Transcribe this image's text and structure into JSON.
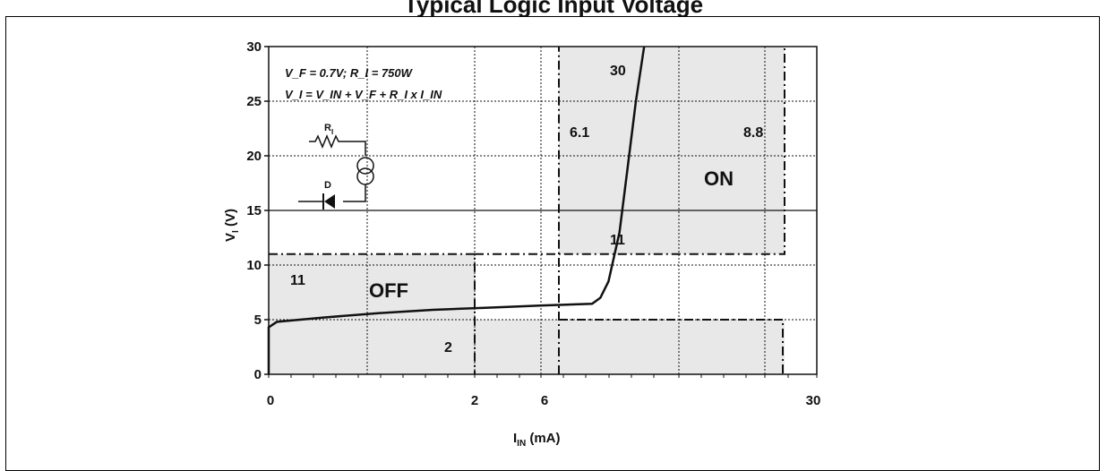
{
  "header": {
    "title": "Typical Logic Input Voltage"
  },
  "chart_data": {
    "type": "line",
    "xlabel_main": "I",
    "xlabel_sub": "IN",
    "xlabel_unit": " (mA)",
    "ylabel_main": "V",
    "ylabel_sub": "I",
    "ylabel_unit": " (V)",
    "ylim": [
      0,
      30
    ],
    "y_ticks": [
      "0",
      "5",
      "10",
      "15",
      "20",
      "25",
      "30"
    ],
    "x_tick_labels": [
      "0",
      "2",
      "6",
      "30"
    ],
    "grid": true,
    "series": [
      {
        "values_note": "",
        "points": [
          [
            0,
            0
          ],
          [
            0.0,
            4.3
          ],
          [
            0.15,
            4.8
          ],
          [
            1.0,
            5.2
          ],
          [
            2.0,
            5.6
          ],
          [
            3.0,
            5.9
          ],
          [
            4.0,
            6.1
          ],
          [
            5.0,
            6.3
          ],
          [
            5.9,
            6.45
          ],
          [
            6.05,
            7.0
          ],
          [
            6.2,
            8.5
          ],
          [
            6.4,
            13
          ],
          [
            6.55,
            19
          ],
          [
            6.7,
            25
          ],
          [
            6.85,
            30
          ]
        ]
      }
    ],
    "annotations": {
      "formula_line1": "V_F = 0.7V; R_I = 750W",
      "formula_line2": "V_I = V_IN + V_F + R_I x I_IN",
      "circuit_r_label": "R",
      "circuit_r_sub": "I",
      "circuit_d_label": "D",
      "region_off_label": "OFF",
      "region_on_label": "ON",
      "region_off_limit_v": "11",
      "region_off_limit_i": "2",
      "region_on_limit_v_top": "30",
      "region_on_limit_v_low": "11",
      "region_on_limit_i_left": "6.1",
      "region_on_limit_i_right": "8.8"
    }
  }
}
